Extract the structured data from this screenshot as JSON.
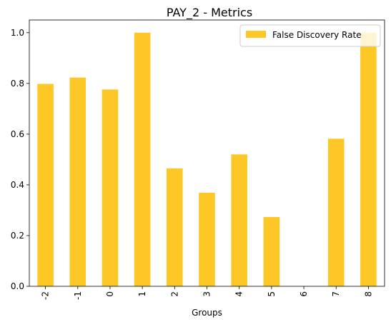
{
  "chart_data": {
    "type": "bar",
    "title": "PAY_2 - Metrics",
    "xlabel": "Groups",
    "ylabel": "",
    "categories": [
      "-2",
      "-1",
      "0",
      "1",
      "2",
      "3",
      "4",
      "5",
      "6",
      "7",
      "8"
    ],
    "series": [
      {
        "name": "False Discovery Rate",
        "values": [
          0.798,
          0.823,
          0.776,
          1.0,
          0.465,
          0.369,
          0.52,
          0.273,
          0.0,
          0.582,
          1.0
        ],
        "color": "#fdc826"
      }
    ],
    "ylim": [
      0,
      1.05
    ],
    "yticks": [
      "0.0",
      "0.2",
      "0.4",
      "0.6",
      "0.8",
      "1.0"
    ],
    "grid": false,
    "legend_position": "top-right"
  }
}
